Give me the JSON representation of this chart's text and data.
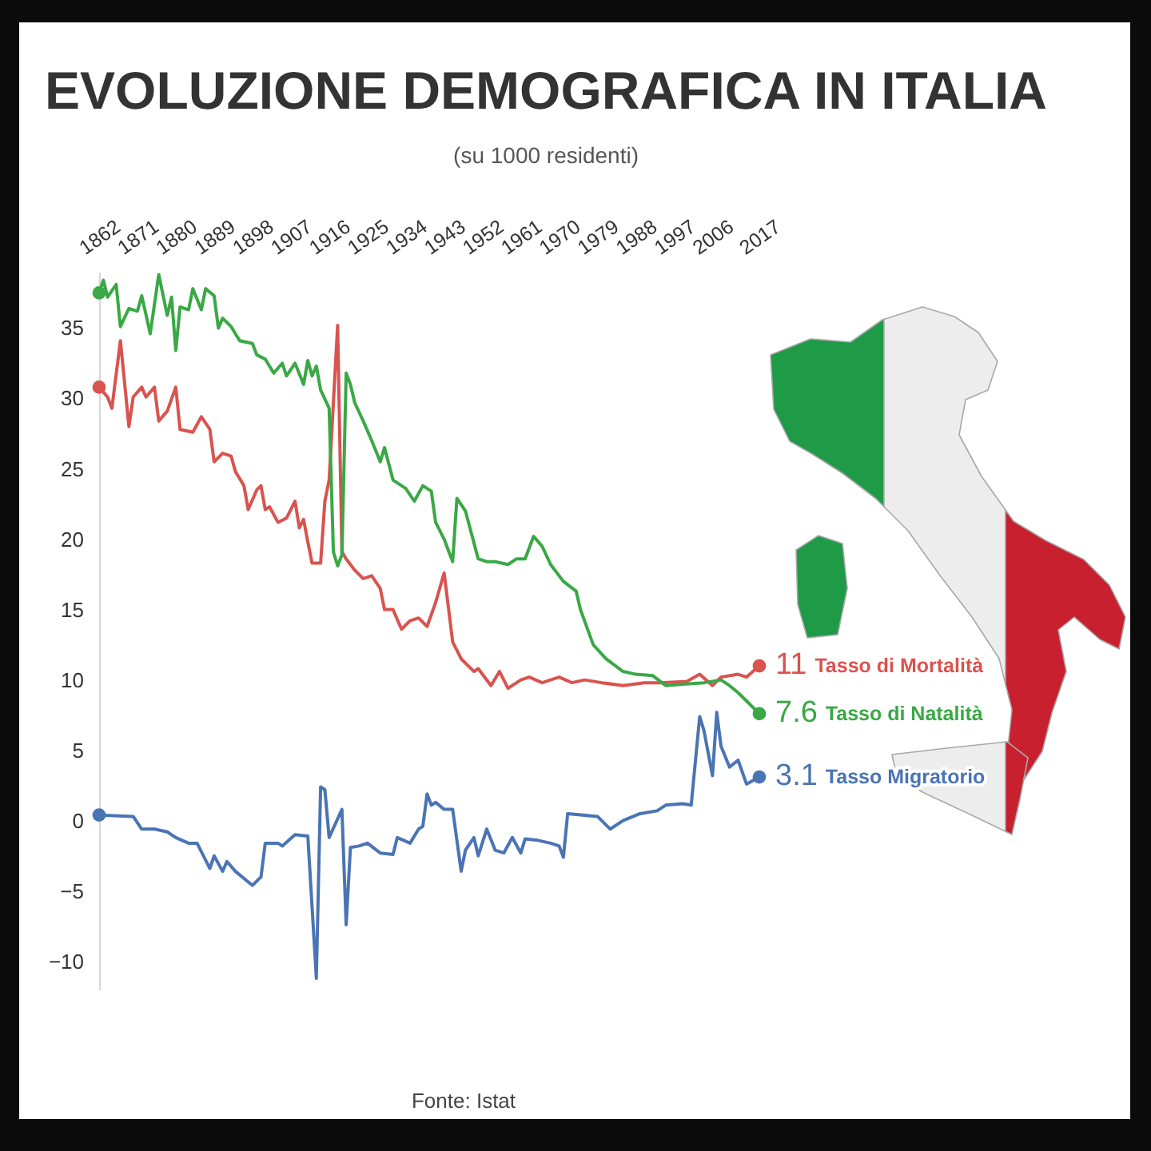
{
  "chart_data": {
    "type": "line",
    "title": "EVOLUZIONE DEMOGRAFICA IN ITALIA",
    "subtitle": "(su 1000 residenti)",
    "annotations": [
      "Fonte: Istat"
    ],
    "xlim": [
      1862,
      2017
    ],
    "xticks": [
      1862,
      1871,
      1880,
      1889,
      1898,
      1907,
      1916,
      1925,
      1934,
      1943,
      1952,
      1961,
      1970,
      1979,
      1988,
      1997,
      2006,
      2017
    ],
    "ylim": [
      -12,
      39
    ],
    "yticks": [
      -10,
      -5,
      0,
      5,
      10,
      15,
      20,
      25,
      30,
      35
    ],
    "grid": false,
    "legend": false,
    "series": [
      {
        "name": "Tasso di Mortalità",
        "color": "#d9534f",
        "x": [
          1862,
          1864,
          1865,
          1867,
          1869,
          1870,
          1872,
          1873,
          1875,
          1876,
          1878,
          1880,
          1881,
          1884,
          1886,
          1888,
          1889,
          1891,
          1893,
          1894,
          1896,
          1897,
          1899,
          1900,
          1901,
          1902,
          1904,
          1906,
          1908,
          1909,
          1910,
          1911,
          1912,
          1914,
          1915,
          1916,
          1918,
          1919,
          1920,
          1922,
          1924,
          1926,
          1928,
          1929,
          1931,
          1933,
          1935,
          1937,
          1939,
          1941,
          1943,
          1945,
          1947,
          1950,
          1951,
          1954,
          1956,
          1958,
          1961,
          1963,
          1966,
          1970,
          1973,
          1976,
          1980,
          1985,
          1990,
          1994,
          2000,
          2003,
          2006,
          2008,
          2012,
          2014,
          2017
        ],
        "values": [
          30.8,
          30.1,
          29.3,
          34.1,
          28.0,
          30.1,
          30.8,
          30.1,
          30.8,
          28.4,
          29.1,
          30.8,
          27.8,
          27.6,
          28.7,
          27.8,
          25.5,
          26.1,
          25.9,
          24.8,
          23.8,
          22.1,
          23.5,
          23.8,
          22.1,
          22.3,
          21.2,
          21.5,
          22.7,
          20.8,
          21.4,
          19.8,
          18.3,
          18.3,
          22.7,
          24.2,
          35.2,
          19.1,
          18.6,
          17.8,
          17.2,
          17.4,
          16.5,
          15.0,
          15.0,
          13.6,
          14.2,
          14.4,
          13.8,
          15.5,
          17.6,
          12.7,
          11.5,
          10.6,
          10.8,
          9.6,
          10.6,
          9.4,
          10.0,
          10.2,
          9.8,
          10.2,
          9.8,
          10.0,
          9.8,
          9.6,
          9.8,
          9.8,
          9.9,
          10.4,
          9.6,
          10.2,
          10.4,
          10.2,
          11
        ],
        "value_labels": [
          null,
          null,
          null,
          null,
          null,
          null,
          null,
          null,
          null,
          null,
          null,
          null,
          null,
          null,
          null,
          null,
          null,
          null,
          null,
          null,
          null,
          null,
          null,
          null,
          null,
          null,
          null,
          null,
          null,
          null,
          null,
          null,
          null,
          null,
          null,
          null,
          null,
          null,
          null,
          null,
          null,
          null,
          null,
          null,
          null,
          null,
          null,
          null,
          null,
          null,
          null,
          null,
          null,
          null,
          null,
          null,
          null,
          null,
          null,
          null,
          null,
          null,
          null,
          null,
          null,
          null,
          null,
          null,
          null,
          null,
          null,
          null,
          null,
          null,
          "11"
        ]
      },
      {
        "name": "Tasso di Natalità",
        "color": "#3aa845",
        "x": [
          1862,
          1863,
          1864,
          1866,
          1867,
          1869,
          1871,
          1872,
          1874,
          1876,
          1878,
          1879,
          1880,
          1881,
          1883,
          1884,
          1886,
          1887,
          1889,
          1890,
          1891,
          1893,
          1895,
          1898,
          1899,
          1901,
          1903,
          1905,
          1906,
          1908,
          1910,
          1911,
          1912,
          1913,
          1914,
          1916,
          1917,
          1918,
          1919,
          1920,
          1921,
          1922,
          1924,
          1926,
          1928,
          1929,
          1931,
          1934,
          1936,
          1938,
          1940,
          1941,
          1943,
          1945,
          1946,
          1948,
          1951,
          1953,
          1955,
          1958,
          1960,
          1962,
          1964,
          1966,
          1968,
          1971,
          1974,
          1975,
          1978,
          1981,
          1985,
          1988,
          1992,
          1995,
          1999,
          2004,
          2008,
          2010,
          2012,
          2014,
          2017
        ],
        "values": [
          37.5,
          38.4,
          37.2,
          38.1,
          35.1,
          36.4,
          36.2,
          37.3,
          34.6,
          38.8,
          35.9,
          37.2,
          33.4,
          36.5,
          36.3,
          37.8,
          36.3,
          37.8,
          37.3,
          35.0,
          35.7,
          35.1,
          34.1,
          33.9,
          33.1,
          32.8,
          31.8,
          32.5,
          31.6,
          32.5,
          31.0,
          32.7,
          31.6,
          32.3,
          30.6,
          29.3,
          19.1,
          18.1,
          18.9,
          31.8,
          31.0,
          29.7,
          28.4,
          27.0,
          25.5,
          26.5,
          24.2,
          23.6,
          22.7,
          23.8,
          23.4,
          21.2,
          20.0,
          18.4,
          22.9,
          22.0,
          18.6,
          18.4,
          18.4,
          18.2,
          18.6,
          18.6,
          20.2,
          19.5,
          18.2,
          17.0,
          16.3,
          15.0,
          12.5,
          11.5,
          10.6,
          10.4,
          10.3,
          9.6,
          9.7,
          9.8,
          10.0,
          9.6,
          9.1,
          8.5,
          7.6
        ],
        "value_labels": [
          null,
          null,
          null,
          null,
          null,
          null,
          null,
          null,
          null,
          null,
          null,
          null,
          null,
          null,
          null,
          null,
          null,
          null,
          null,
          null,
          null,
          null,
          null,
          null,
          null,
          null,
          null,
          null,
          null,
          null,
          null,
          null,
          null,
          null,
          null,
          null,
          null,
          null,
          null,
          null,
          null,
          null,
          null,
          null,
          null,
          null,
          null,
          null,
          null,
          null,
          null,
          null,
          null,
          null,
          null,
          null,
          null,
          null,
          null,
          null,
          null,
          null,
          null,
          null,
          null,
          null,
          null,
          null,
          null,
          null,
          null,
          null,
          null,
          null,
          null,
          null,
          null,
          null,
          null,
          null,
          "7.6"
        ]
      },
      {
        "name": "Tasso Migratorio",
        "color": "#4a74b4",
        "x": [
          1862,
          1870,
          1872,
          1875,
          1878,
          1880,
          1883,
          1885,
          1888,
          1889,
          1891,
          1892,
          1894,
          1898,
          1900,
          1901,
          1904,
          1905,
          1908,
          1911,
          1913,
          1914,
          1915,
          1916,
          1919,
          1920,
          1921,
          1923,
          1925,
          1928,
          1931,
          1932,
          1935,
          1937,
          1938,
          1939,
          1940,
          1941,
          1943,
          1945,
          1947,
          1948,
          1950,
          1951,
          1953,
          1955,
          1957,
          1959,
          1961,
          1962,
          1965,
          1968,
          1970,
          1971,
          1972,
          1979,
          1982,
          1985,
          1989,
          1993,
          1995,
          1999,
          2001,
          2003,
          2004,
          2006,
          2007,
          2008,
          2010,
          2012,
          2014,
          2017
        ],
        "values": [
          0.4,
          0.3,
          -0.6,
          -0.6,
          -0.8,
          -1.2,
          -1.6,
          -1.6,
          -3.4,
          -2.5,
          -3.6,
          -2.9,
          -3.6,
          -4.6,
          -4.0,
          -1.6,
          -1.6,
          -1.8,
          -1.0,
          -1.1,
          -11.2,
          2.4,
          2.2,
          -1.2,
          0.8,
          -7.4,
          -1.9,
          -1.8,
          -1.6,
          -2.3,
          -2.4,
          -1.2,
          -1.6,
          -0.6,
          -0.4,
          1.9,
          1.1,
          1.3,
          0.8,
          0.8,
          -3.6,
          -2.1,
          -1.2,
          -2.5,
          -0.6,
          -2.1,
          -2.3,
          -1.2,
          -2.3,
          -1.3,
          -1.4,
          -1.6,
          -1.8,
          -2.6,
          0.5,
          0.3,
          -0.6,
          0.0,
          0.5,
          0.7,
          1.1,
          1.2,
          1.1,
          7.4,
          6.4,
          3.2,
          7.7,
          5.3,
          3.8,
          4.3,
          2.6,
          3.1
        ],
        "value_labels": [
          null,
          null,
          null,
          null,
          null,
          null,
          null,
          null,
          null,
          null,
          null,
          null,
          null,
          null,
          null,
          null,
          null,
          null,
          null,
          null,
          null,
          null,
          null,
          null,
          null,
          null,
          null,
          null,
          null,
          null,
          null,
          null,
          null,
          null,
          null,
          null,
          null,
          null,
          null,
          null,
          null,
          null,
          null,
          null,
          null,
          null,
          null,
          null,
          null,
          null,
          null,
          null,
          null,
          null,
          null,
          null,
          null,
          null,
          null,
          null,
          null,
          null,
          null,
          null,
          null,
          null,
          null,
          null,
          null,
          null,
          null,
          "3.1"
        ]
      }
    ]
  }
}
